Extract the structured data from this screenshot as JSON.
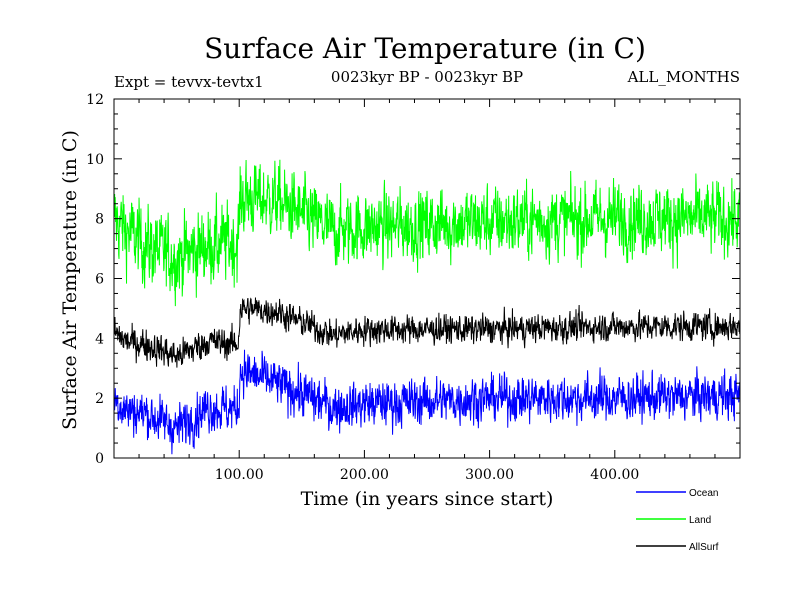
{
  "chart_data": {
    "type": "line",
    "title": "Surface Air Temperature (in C)",
    "subtitle_left": "Expt = tevvx-tevtx1",
    "subtitle_center": "0023kyr BP - 0023kyr BP",
    "subtitle_right": "ALL_MONTHS",
    "xlabel": "Time (in years since start)",
    "ylabel": "Surface Air Temperature (in C)",
    "xlim": [
      0,
      500
    ],
    "ylim": [
      0,
      12
    ],
    "x_ticks": [
      100,
      200,
      300,
      400
    ],
    "x_tick_labels": [
      "100.00",
      "200.00",
      "300.00",
      "400.00"
    ],
    "y_ticks": [
      0,
      2,
      4,
      6,
      8,
      10,
      12
    ],
    "y_tick_labels": [
      "0",
      "2",
      "4",
      "6",
      "8",
      "10",
      "12"
    ],
    "grid": false,
    "legend_position": "bottom-right, outside plot",
    "series": [
      {
        "name": "Ocean",
        "color": "#0000ff",
        "segments": [
          {
            "x": [
              0,
              100
            ],
            "mean": 1.8,
            "noise": 0.45
          },
          {
            "x": [
              100,
              500
            ],
            "mean": 2.0,
            "noise": 0.45
          }
        ],
        "anchors": [
          [
            0,
            2.0
          ],
          [
            10,
            1.6
          ],
          [
            25,
            1.5
          ],
          [
            50,
            1.0
          ],
          [
            75,
            1.7
          ],
          [
            99,
            1.6
          ],
          [
            101,
            2.9
          ],
          [
            130,
            2.5
          ],
          [
            175,
            1.7
          ],
          [
            200,
            1.8
          ],
          [
            300,
            2.0
          ],
          [
            400,
            2.0
          ],
          [
            500,
            2.1
          ]
        ]
      },
      {
        "name": "Land",
        "color": "#00ff00",
        "segments": [
          {
            "x": [
              0,
              100
            ],
            "mean": 7.2,
            "noise": 0.75
          },
          {
            "x": [
              100,
              500
            ],
            "mean": 8.0,
            "noise": 0.7
          }
        ],
        "anchors": [
          [
            0,
            8.0
          ],
          [
            10,
            7.6
          ],
          [
            25,
            7.1
          ],
          [
            50,
            6.7
          ],
          [
            75,
            7.1
          ],
          [
            99,
            7.2
          ],
          [
            101,
            8.7
          ],
          [
            130,
            8.6
          ],
          [
            175,
            7.6
          ],
          [
            200,
            7.7
          ],
          [
            300,
            7.9
          ],
          [
            400,
            8.0
          ],
          [
            500,
            8.0
          ]
        ]
      },
      {
        "name": "AllSurf",
        "color": "#000000",
        "segments": [
          {
            "x": [
              0,
              100
            ],
            "mean": 3.8,
            "noise": 0.3
          },
          {
            "x": [
              100,
              500
            ],
            "mean": 4.4,
            "noise": 0.28
          }
        ],
        "anchors": [
          [
            0,
            4.2
          ],
          [
            10,
            3.9
          ],
          [
            25,
            3.8
          ],
          [
            50,
            3.4
          ],
          [
            75,
            3.9
          ],
          [
            99,
            3.8
          ],
          [
            101,
            5.0
          ],
          [
            130,
            4.9
          ],
          [
            175,
            4.1
          ],
          [
            200,
            4.3
          ],
          [
            300,
            4.3
          ],
          [
            400,
            4.4
          ],
          [
            500,
            4.4
          ]
        ]
      }
    ]
  }
}
